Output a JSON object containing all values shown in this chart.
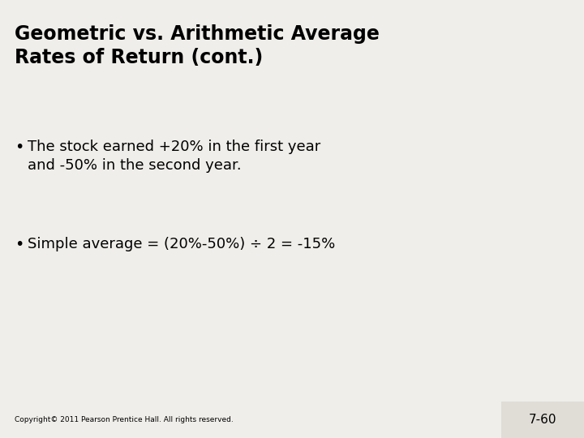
{
  "title_line1": "Geometric vs. Arithmetic Average",
  "title_line2": "Rates of Return (cont.)",
  "bullet1_line1": "The stock earned +20% in the first year",
  "bullet1_line2": "and -50% in the second year.",
  "bullet2": "Simple average = (20%-50%) ÷ 2 = -15%",
  "copyright": "Copyright© 2011 Pearson Prentice Hall. All rights reserved.",
  "page_num": "7-60",
  "bg_color": "#f0eeea",
  "title_color": "#000000",
  "text_color": "#000000",
  "footer_bg": "#e0ddd6",
  "title_fontsize": 17,
  "body_fontsize": 13,
  "copyright_fontsize": 6.5,
  "page_num_fontsize": 11
}
